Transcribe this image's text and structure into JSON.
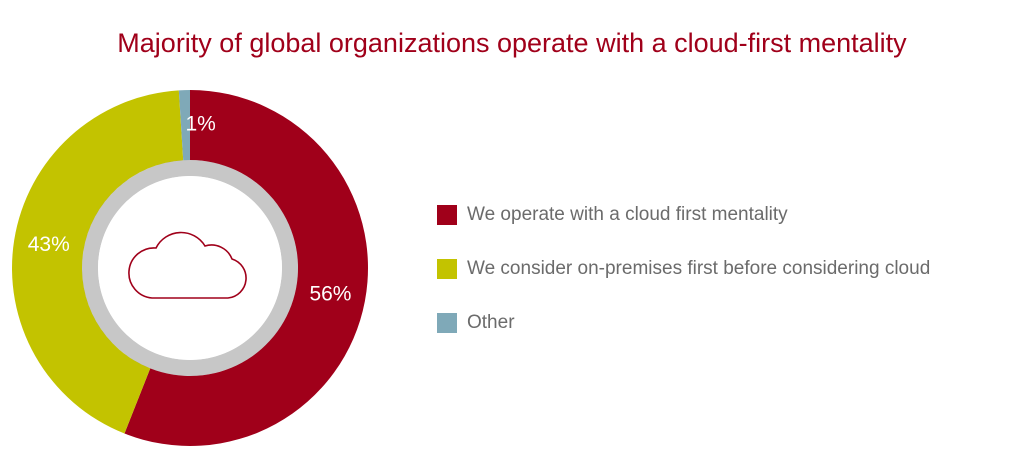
{
  "chart_data": {
    "type": "pie",
    "title": "Majority of global organizations operate with a cloud-first mentality",
    "categories": [
      "We operate with a cloud first mentality",
      "We consider on-premises first before considering cloud",
      "Other"
    ],
    "values": [
      56,
      43,
      1
    ],
    "value_labels": [
      "56%",
      "43%",
      "1%"
    ],
    "colors": [
      "#a0001a",
      "#c3c300",
      "#7fa9b8"
    ],
    "donut": true
  }
}
